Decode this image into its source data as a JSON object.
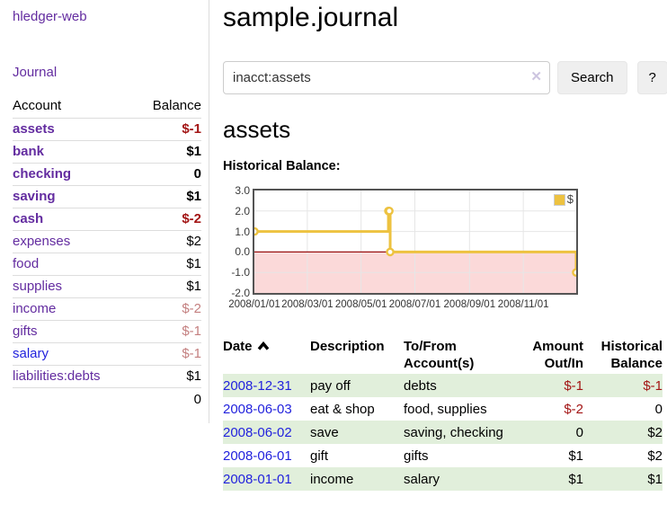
{
  "app": {
    "title": "hledger-web"
  },
  "colors": {
    "link_purple": "#632ca0",
    "link_blue": "#2222dd",
    "negative_strong": "#a31515",
    "negative_soft": "#c48080",
    "row_stripe_green": "#e1efdb",
    "series_yellow": "#edc240"
  },
  "sidebar": {
    "journal_label": "Journal",
    "accounts_header": "Account",
    "balance_header": "Balance",
    "accounts": [
      {
        "name": "assets",
        "balance": "$-1"
      },
      {
        "name": "bank",
        "balance": "$1"
      },
      {
        "name": "checking",
        "balance": "0"
      },
      {
        "name": "saving",
        "balance": "$1"
      },
      {
        "name": "cash",
        "balance": "$-2"
      },
      {
        "name": "expenses",
        "balance": "$2"
      },
      {
        "name": "food",
        "balance": "$1"
      },
      {
        "name": "supplies",
        "balance": "$1"
      },
      {
        "name": "income",
        "balance": "$-2"
      },
      {
        "name": "gifts",
        "balance": "$-1"
      },
      {
        "name": "salary",
        "balance": "$-1"
      },
      {
        "name": "liabilities:debts",
        "balance": "$1"
      }
    ],
    "total": "0"
  },
  "main": {
    "title": "sample.journal",
    "search": {
      "value": "inacct:assets",
      "clear_icon": "✕",
      "button_label": "Search",
      "help_label": "?"
    },
    "account_heading": "assets",
    "chart_title": "Historical Balance:"
  },
  "chart_data": {
    "type": "line",
    "step": true,
    "title": "Historical Balance:",
    "legend_label": "$",
    "legend_position": "top-right",
    "series_color": "#edc240",
    "grid_color": "#e6e6e6",
    "negative_fill": "#fbd9d9",
    "zero_line_color": "#991111",
    "ylim": [
      -2,
      3
    ],
    "xlim_days": [
      0,
      365
    ],
    "y_ticks": [
      3.0,
      2.0,
      1.0,
      0.0,
      -1.0,
      -2.0
    ],
    "x_ticks": [
      {
        "label": "2008/01/01",
        "day": 0
      },
      {
        "label": "2008/03/01",
        "day": 60
      },
      {
        "label": "2008/05/01",
        "day": 121
      },
      {
        "label": "2008/07/01",
        "day": 182
      },
      {
        "label": "2008/09/01",
        "day": 244
      },
      {
        "label": "2008/11/01",
        "day": 305
      }
    ],
    "points": [
      {
        "date": "2008-01-01",
        "day": 0,
        "value": 1
      },
      {
        "date": "2008-06-01",
        "day": 152,
        "value": 2
      },
      {
        "date": "2008-06-02",
        "day": 153,
        "value": 2
      },
      {
        "date": "2008-06-03",
        "day": 154,
        "value": 0
      },
      {
        "date": "2008-12-31",
        "day": 365,
        "value": -1
      }
    ]
  },
  "register": {
    "headers": {
      "date": "Date",
      "description": "Description",
      "accounts": "To/From Account(s)",
      "amount": "Amount Out/In",
      "balance": "Historical Balance"
    },
    "rows": [
      {
        "date": "2008-12-31",
        "description": "pay off",
        "accounts": "debts",
        "amount": "$-1",
        "balance": "$-1"
      },
      {
        "date": "2008-06-03",
        "description": "eat & shop",
        "accounts": "food, supplies",
        "amount": "$-2",
        "balance": "0"
      },
      {
        "date": "2008-06-02",
        "description": "save",
        "accounts": "saving, checking",
        "amount": "0",
        "balance": "$2"
      },
      {
        "date": "2008-06-01",
        "description": "gift",
        "accounts": "gifts",
        "amount": "$1",
        "balance": "$2"
      },
      {
        "date": "2008-01-01",
        "description": "income",
        "accounts": "salary",
        "amount": "$1",
        "balance": "$1"
      }
    ]
  }
}
